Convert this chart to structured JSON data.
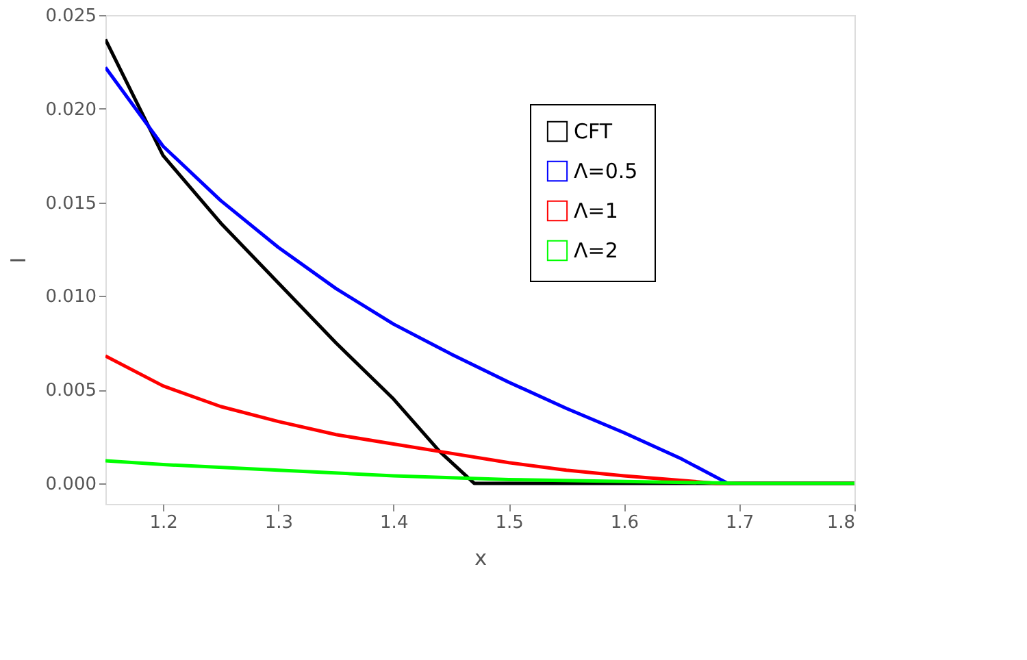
{
  "chart_data": {
    "type": "line",
    "xlabel": "x",
    "ylabel": "I",
    "xlim": [
      1.15,
      1.8
    ],
    "ylim": [
      -0.0011,
      0.025
    ],
    "xticks": [
      1.2,
      1.3,
      1.4,
      1.5,
      1.6,
      1.7,
      1.8
    ],
    "yticks": [
      {
        "value": 0,
        "label": "0.000"
      },
      {
        "value": 0.005,
        "label": "0.005"
      },
      {
        "value": 0.01,
        "label": "0.010"
      },
      {
        "value": 0.015,
        "label": "0.015"
      },
      {
        "value": 0.02,
        "label": "0.020"
      },
      {
        "value": 0.025,
        "label": "0.025"
      }
    ],
    "grid": false,
    "legend": "top right",
    "line_style": "solid",
    "marker": "none",
    "series": [
      {
        "name": "CFT",
        "color": "#000000",
        "x": [
          1.15,
          1.2,
          1.25,
          1.3,
          1.35,
          1.4,
          1.44,
          1.47,
          1.5,
          1.6,
          1.7,
          1.8
        ],
        "values": [
          0.0237,
          0.0175,
          0.0139,
          0.0107,
          0.0075,
          0.0045,
          0.0017,
          0.0,
          0.0,
          0.0,
          0.0,
          0.0
        ]
      },
      {
        "name": "Λ=0.5",
        "color": "#0000ff",
        "x": [
          1.15,
          1.2,
          1.25,
          1.3,
          1.35,
          1.4,
          1.45,
          1.5,
          1.55,
          1.6,
          1.65,
          1.69,
          1.75,
          1.8
        ],
        "values": [
          0.0222,
          0.018,
          0.0151,
          0.0126,
          0.0104,
          0.0085,
          0.0069,
          0.0054,
          0.004,
          0.0027,
          0.0013,
          0.0,
          0.0,
          0.0
        ]
      },
      {
        "name": "Λ=1",
        "color": "#ff0000",
        "x": [
          1.15,
          1.2,
          1.25,
          1.3,
          1.35,
          1.4,
          1.45,
          1.5,
          1.55,
          1.6,
          1.68,
          1.8
        ],
        "values": [
          0.0068,
          0.0052,
          0.0041,
          0.0033,
          0.0026,
          0.0021,
          0.0016,
          0.0011,
          0.0007,
          0.0004,
          0.0,
          0.0
        ]
      },
      {
        "name": "Λ=2",
        "color": "#00ff00",
        "x": [
          1.15,
          1.2,
          1.3,
          1.4,
          1.5,
          1.6,
          1.7,
          1.8
        ],
        "values": [
          0.0012,
          0.001,
          0.0007,
          0.0004,
          0.0002,
          0.0001,
          0.0,
          0.0
        ]
      }
    ]
  }
}
